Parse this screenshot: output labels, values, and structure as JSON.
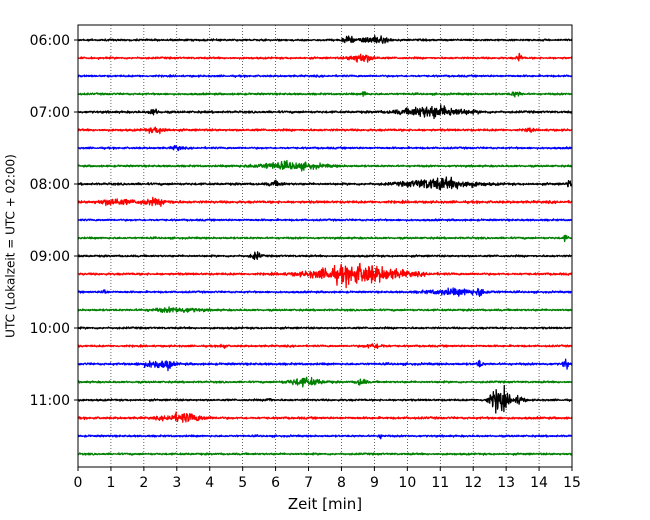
{
  "chart_data": {
    "type": "line",
    "title": "",
    "xlabel": "Zeit  [min]",
    "ylabel": "UTC (Lokalzeit = UTC + 02:00)",
    "xlim": [
      0,
      15
    ],
    "x_ticks": [
      "0",
      "1",
      "2",
      "3",
      "4",
      "5",
      "6",
      "7",
      "8",
      "9",
      "10",
      "11",
      "12",
      "13",
      "14",
      "15"
    ],
    "y_ticks": [
      {
        "label": "06:00",
        "trace": 0
      },
      {
        "label": "07:00",
        "trace": 4
      },
      {
        "label": "08:00",
        "trace": 8
      },
      {
        "label": "09:00",
        "trace": 12
      },
      {
        "label": "10:00",
        "trace": 16
      },
      {
        "label": "11:00",
        "trace": 20
      }
    ],
    "trace_interval_min": 15,
    "grid": {
      "vertical_dotted": true
    },
    "color_cycle": [
      "#000000",
      "#ff0000",
      "#0000ff",
      "#008000"
    ],
    "traces": [
      {
        "start": "06:00",
        "color": "#000000",
        "noise": 0.7,
        "events": [
          {
            "t": 8.2,
            "amp": 3.0,
            "dur": 0.2
          },
          {
            "t": 9.0,
            "amp": 2.6,
            "dur": 0.6
          }
        ]
      },
      {
        "start": "06:15",
        "color": "#ff0000",
        "noise": 0.7,
        "events": [
          {
            "t": 8.6,
            "amp": 3.2,
            "dur": 0.5
          },
          {
            "t": 13.4,
            "amp": 3.5,
            "dur": 0.1
          }
        ]
      },
      {
        "start": "06:30",
        "color": "#0000ff",
        "noise": 0.7,
        "events": []
      },
      {
        "start": "06:45",
        "color": "#008000",
        "noise": 0.7,
        "events": [
          {
            "t": 8.7,
            "amp": 2.2,
            "dur": 0.1
          },
          {
            "t": 13.3,
            "amp": 2.0,
            "dur": 0.2
          }
        ]
      },
      {
        "start": "07:00",
        "color": "#000000",
        "noise": 0.8,
        "events": [
          {
            "t": 2.3,
            "amp": 2.2,
            "dur": 0.2
          },
          {
            "t": 10.8,
            "amp": 4.2,
            "dur": 1.3
          }
        ]
      },
      {
        "start": "07:15",
        "color": "#ff0000",
        "noise": 0.8,
        "events": [
          {
            "t": 2.4,
            "amp": 2.0,
            "dur": 0.4
          },
          {
            "t": 13.7,
            "amp": 2.4,
            "dur": 0.1
          }
        ]
      },
      {
        "start": "07:30",
        "color": "#0000ff",
        "noise": 0.7,
        "events": [
          {
            "t": 3.0,
            "amp": 1.6,
            "dur": 0.2
          }
        ]
      },
      {
        "start": "07:45",
        "color": "#008000",
        "noise": 0.7,
        "events": [
          {
            "t": 6.4,
            "amp": 2.6,
            "dur": 1.4
          }
        ]
      },
      {
        "start": "08:00",
        "color": "#000000",
        "noise": 0.8,
        "events": [
          {
            "t": 6.0,
            "amp": 1.6,
            "dur": 0.3
          },
          {
            "t": 11.0,
            "amp": 4.0,
            "dur": 1.4
          },
          {
            "t": 14.9,
            "amp": 2.4,
            "dur": 0.1
          }
        ]
      },
      {
        "start": "08:15",
        "color": "#ff0000",
        "noise": 0.9,
        "events": [
          {
            "t": 1.1,
            "amp": 2.4,
            "dur": 0.6
          },
          {
            "t": 2.3,
            "amp": 2.0,
            "dur": 0.7
          }
        ]
      },
      {
        "start": "08:30",
        "color": "#0000ff",
        "noise": 0.7,
        "events": []
      },
      {
        "start": "08:45",
        "color": "#008000",
        "noise": 0.7,
        "events": [
          {
            "t": 14.8,
            "amp": 2.0,
            "dur": 0.1
          }
        ]
      },
      {
        "start": "09:00",
        "color": "#000000",
        "noise": 0.7,
        "events": [
          {
            "t": 5.4,
            "amp": 2.8,
            "dur": 0.2
          }
        ]
      },
      {
        "start": "09:15",
        "color": "#ff0000",
        "noise": 0.8,
        "events": [
          {
            "t": 8.5,
            "amp": 7.0,
            "dur": 1.8
          }
        ]
      },
      {
        "start": "09:30",
        "color": "#0000ff",
        "noise": 0.7,
        "events": [
          {
            "t": 0.8,
            "amp": 2.0,
            "dur": 0.1
          },
          {
            "t": 11.5,
            "amp": 2.2,
            "dur": 1.2
          },
          {
            "t": 12.2,
            "amp": 3.2,
            "dur": 0.1
          }
        ]
      },
      {
        "start": "09:45",
        "color": "#008000",
        "noise": 0.7,
        "events": [
          {
            "t": 3.0,
            "amp": 1.6,
            "dur": 1.0
          }
        ]
      },
      {
        "start": "10:00",
        "color": "#000000",
        "noise": 0.7,
        "events": []
      },
      {
        "start": "10:15",
        "color": "#ff0000",
        "noise": 0.7,
        "events": [
          {
            "t": 4.4,
            "amp": 2.4,
            "dur": 0.1
          },
          {
            "t": 9.0,
            "amp": 1.6,
            "dur": 0.4
          }
        ]
      },
      {
        "start": "10:30",
        "color": "#0000ff",
        "noise": 0.8,
        "events": [
          {
            "t": 2.4,
            "amp": 2.6,
            "dur": 0.6
          },
          {
            "t": 2.75,
            "amp": 3.2,
            "dur": 0.1
          },
          {
            "t": 12.2,
            "amp": 3.0,
            "dur": 0.1
          },
          {
            "t": 14.8,
            "amp": 4.4,
            "dur": 0.1
          }
        ]
      },
      {
        "start": "10:45",
        "color": "#008000",
        "noise": 0.7,
        "events": [
          {
            "t": 6.9,
            "amp": 2.8,
            "dur": 0.7
          },
          {
            "t": 8.6,
            "amp": 2.6,
            "dur": 0.2
          }
        ]
      },
      {
        "start": "11:00",
        "color": "#000000",
        "noise": 0.7,
        "events": [
          {
            "t": 5.8,
            "amp": 2.4,
            "dur": 0.1
          },
          {
            "t": 12.8,
            "amp": 9.0,
            "dur": 0.4
          },
          {
            "t": 13.4,
            "amp": 3.0,
            "dur": 0.2
          }
        ]
      },
      {
        "start": "11:15",
        "color": "#ff0000",
        "noise": 0.8,
        "events": [
          {
            "t": 3.2,
            "amp": 3.2,
            "dur": 0.8
          }
        ]
      },
      {
        "start": "11:30",
        "color": "#0000ff",
        "noise": 0.7,
        "events": [
          {
            "t": 9.2,
            "amp": 1.4,
            "dur": 0.1
          }
        ]
      },
      {
        "start": "11:45",
        "color": "#008000",
        "noise": 0.7,
        "events": []
      }
    ]
  }
}
